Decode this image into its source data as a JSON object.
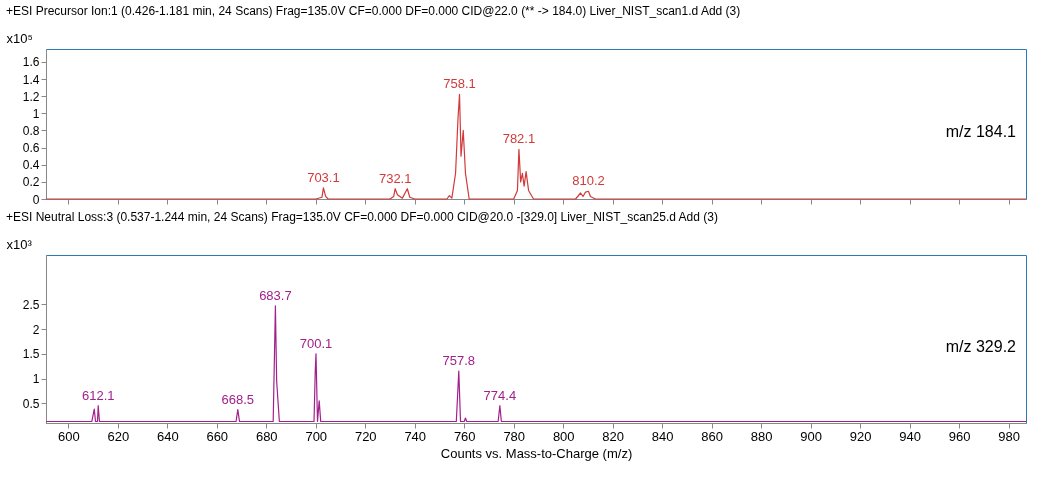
{
  "chart_data": [
    {
      "type": "line",
      "title": "+ESI Precursor Ion:1 (0.426-1.181 min, 24 Scans) Frag=135.0V CF=0.000 DF=0.000 CID@22.0 (** -> 184.0) Liver_NIST_scan1.d Add (3)",
      "ylabel": "x10⁵",
      "x": [
        591,
        700,
        702.5,
        703.1,
        704,
        705,
        730,
        731.5,
        732.1,
        733,
        735,
        737,
        738,
        740,
        753,
        754,
        755,
        756.5,
        757.5,
        758.1,
        758.7,
        759.6,
        760.5,
        762,
        780,
        781.5,
        782.1,
        782.8,
        783.5,
        784.2,
        785,
        786,
        788,
        805,
        807,
        808,
        809,
        810.2,
        811,
        813,
        987
      ],
      "series": [
        {
          "color": "#d03a3a",
          "values": [
            0,
            0,
            0.02,
            0.13,
            0.03,
            0,
            0,
            0.03,
            0.12,
            0.05,
            0.01,
            0.12,
            0.02,
            0,
            0,
            0.04,
            0.01,
            0.3,
            0.95,
            1.22,
            0.5,
            0.8,
            0.3,
            0,
            0,
            0.1,
            0.58,
            0.2,
            0.3,
            0.15,
            0.32,
            0.1,
            0,
            0,
            0.07,
            0.03,
            0.08,
            0.09,
            0.03,
            0,
            0
          ]
        }
      ],
      "xlim": [
        591,
        987
      ],
      "xticks": [
        600,
        620,
        640,
        660,
        680,
        700,
        720,
        740,
        760,
        780,
        800,
        820,
        840,
        860,
        880,
        900,
        920,
        940,
        960,
        980
      ],
      "ylim": [
        0,
        1.75
      ],
      "yticks": [
        0,
        0.2,
        0.4,
        0.6,
        0.8,
        1,
        1.2,
        1.4,
        1.6
      ],
      "tick_labels": "y",
      "grid": false,
      "annotations": [
        {
          "text": "703.1",
          "x": 703.1,
          "y": 0.13
        },
        {
          "text": "732.1",
          "x": 732.1,
          "y": 0.12
        },
        {
          "text": "758.1",
          "x": 758.1,
          "y": 1.22
        },
        {
          "text": "782.1",
          "x": 782.1,
          "y": 0.58
        },
        {
          "text": "810.2",
          "x": 810.2,
          "y": 0.09
        },
        "m/z 184.1"
      ]
    },
    {
      "type": "line",
      "title": "+ESI Neutral Loss:3 (0.537-1.244 min, 24 Scans) Frag=135.0V CF=0.000 DF=0.000 CID@20.0 -[329.0] Liver_NIST_scan25.d Add (3)",
      "ylabel": "x10³",
      "xlabel": "Counts vs. Mass-to-Charge (m/z)",
      "x": [
        591,
        609.5,
        610.5,
        611,
        611.8,
        612.1,
        612.6,
        614,
        667.8,
        668.5,
        669.2,
        682.8,
        683.7,
        684.2,
        684.8,
        685.3,
        686,
        699.3,
        699.8,
        700.1,
        700.7,
        701.4,
        702,
        756.8,
        757.8,
        758.5,
        760,
        760.5,
        761,
        773.7,
        774.4,
        775,
        987
      ],
      "series": [
        {
          "color": "#a2208c",
          "values": [
            0.13,
            0.13,
            0.38,
            0.13,
            0.13,
            0.45,
            0.13,
            0.13,
            0.13,
            0.37,
            0.13,
            0.13,
            2.47,
            0.95,
            0.5,
            0.13,
            0.13,
            0.13,
            1.15,
            1.5,
            0.13,
            0.55,
            0.13,
            0.13,
            1.15,
            0.13,
            0.13,
            0.2,
            0.13,
            0.13,
            0.45,
            0.13,
            0.13
          ]
        }
      ],
      "xlim": [
        591,
        987
      ],
      "xticks": [
        600,
        620,
        640,
        660,
        680,
        700,
        720,
        740,
        760,
        780,
        800,
        820,
        840,
        860,
        880,
        900,
        920,
        940,
        960,
        980
      ],
      "ylim": [
        0.1,
        3.5
      ],
      "yticks": [
        0.5,
        1,
        1.5,
        2,
        2.5
      ],
      "grid": false,
      "annotations": [
        {
          "text": "612.1",
          "x": 612.1,
          "y": 0.45
        },
        {
          "text": "668.5",
          "x": 668.5,
          "y": 0.37
        },
        {
          "text": "683.7",
          "x": 683.7,
          "y": 2.47
        },
        {
          "text": "700.1",
          "x": 700.1,
          "y": 1.5
        },
        {
          "text": "757.8",
          "x": 757.8,
          "y": 1.15
        },
        {
          "text": "774.4",
          "x": 774.4,
          "y": 0.45
        },
        "m/z 329.2"
      ]
    }
  ]
}
